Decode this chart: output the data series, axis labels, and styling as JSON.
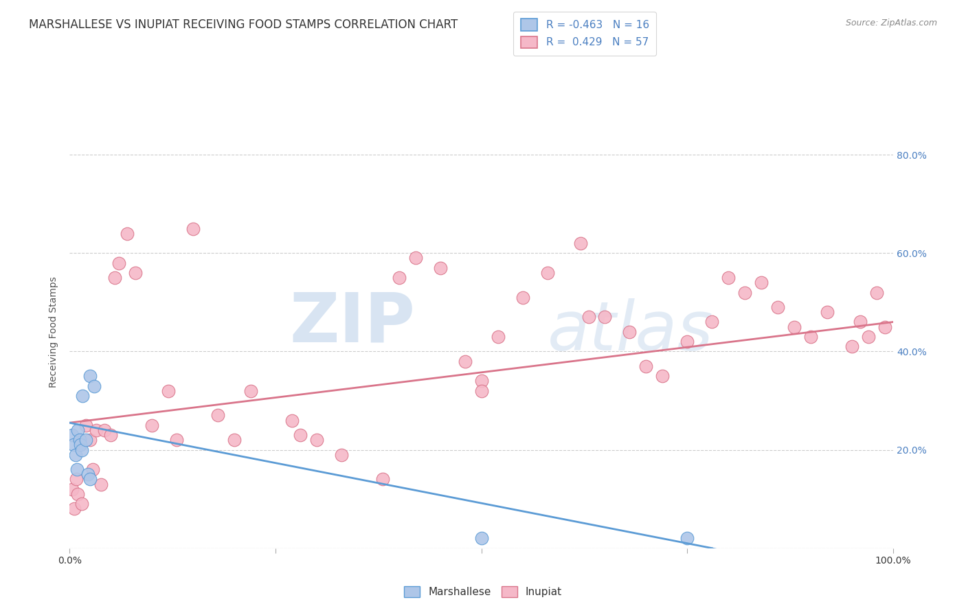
{
  "title": "MARSHALLESE VS INUPIAT RECEIVING FOOD STAMPS CORRELATION CHART",
  "source": "Source: ZipAtlas.com",
  "ylabel": "Receiving Food Stamps",
  "xlim": [
    0.0,
    1.0
  ],
  "ylim": [
    0.0,
    0.88
  ],
  "marshallese_color": "#aec6e8",
  "inupiat_color": "#f5b8c8",
  "trend_marshallese_color": "#5b9bd5",
  "trend_inupiat_color": "#d9748a",
  "marshallese_r": -0.463,
  "marshallese_n": 16,
  "inupiat_r": 0.429,
  "inupiat_n": 57,
  "marshallese_x": [
    0.003,
    0.005,
    0.007,
    0.009,
    0.01,
    0.012,
    0.013,
    0.015,
    0.016,
    0.02,
    0.022,
    0.025,
    0.025,
    0.03,
    0.5,
    0.75
  ],
  "marshallese_y": [
    0.23,
    0.21,
    0.19,
    0.16,
    0.24,
    0.22,
    0.21,
    0.2,
    0.31,
    0.22,
    0.15,
    0.14,
    0.35,
    0.33,
    0.02,
    0.02
  ],
  "inupiat_x": [
    0.003,
    0.006,
    0.008,
    0.01,
    0.015,
    0.02,
    0.025,
    0.028,
    0.032,
    0.038,
    0.042,
    0.05,
    0.055,
    0.06,
    0.07,
    0.08,
    0.1,
    0.12,
    0.13,
    0.15,
    0.18,
    0.2,
    0.22,
    0.27,
    0.28,
    0.3,
    0.33,
    0.38,
    0.4,
    0.42,
    0.45,
    0.48,
    0.5,
    0.5,
    0.52,
    0.55,
    0.58,
    0.62,
    0.63,
    0.65,
    0.68,
    0.7,
    0.72,
    0.75,
    0.78,
    0.8,
    0.82,
    0.84,
    0.86,
    0.88,
    0.9,
    0.92,
    0.95,
    0.96,
    0.97,
    0.98,
    0.99
  ],
  "inupiat_y": [
    0.12,
    0.08,
    0.14,
    0.11,
    0.09,
    0.25,
    0.22,
    0.16,
    0.24,
    0.13,
    0.24,
    0.23,
    0.55,
    0.58,
    0.64,
    0.56,
    0.25,
    0.32,
    0.22,
    0.65,
    0.27,
    0.22,
    0.32,
    0.26,
    0.23,
    0.22,
    0.19,
    0.14,
    0.55,
    0.59,
    0.57,
    0.38,
    0.34,
    0.32,
    0.43,
    0.51,
    0.56,
    0.62,
    0.47,
    0.47,
    0.44,
    0.37,
    0.35,
    0.42,
    0.46,
    0.55,
    0.52,
    0.54,
    0.49,
    0.45,
    0.43,
    0.48,
    0.41,
    0.46,
    0.43,
    0.52,
    0.45
  ],
  "watermark_zip": "ZIP",
  "watermark_atlas": "atlas",
  "background_color": "#ffffff",
  "grid_color": "#cccccc",
  "title_fontsize": 12,
  "axis_label_fontsize": 10,
  "tick_fontsize": 10,
  "legend_fontsize": 11,
  "trend_marshallese_start_x": 0.0,
  "trend_marshallese_end_x": 0.78,
  "trend_marshallese_start_y": 0.255,
  "trend_marshallese_end_y": 0.0,
  "trend_inupiat_start_x": 0.0,
  "trend_inupiat_end_x": 1.0,
  "trend_inupiat_start_y": 0.255,
  "trend_inupiat_end_y": 0.46
}
